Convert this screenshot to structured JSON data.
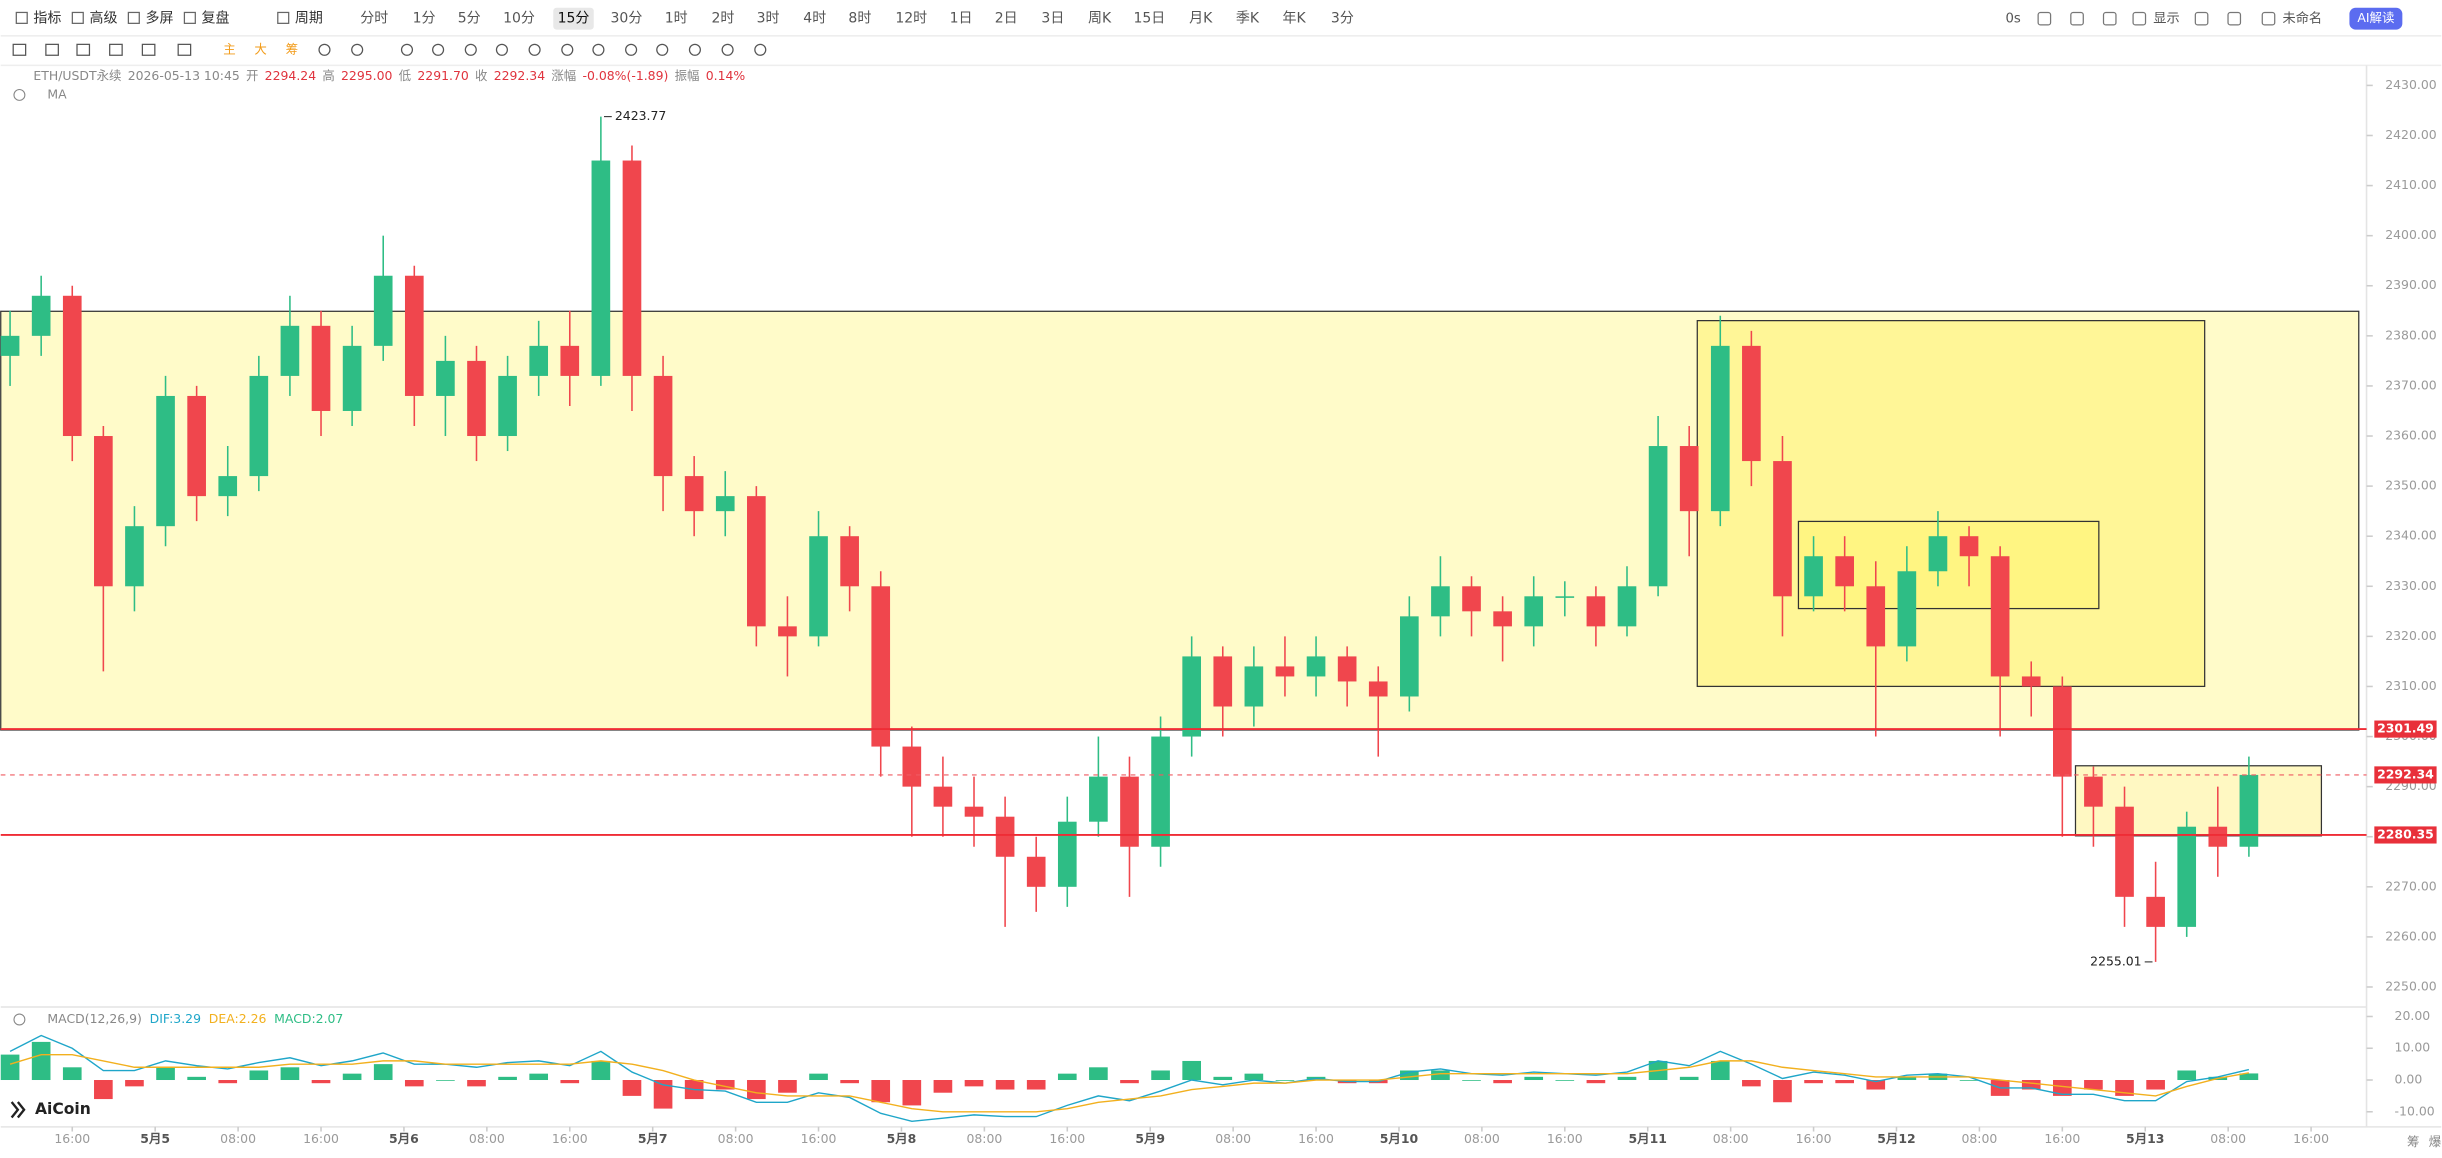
{
  "toolbar": {
    "left": [
      "指标",
      "高级",
      "多屏",
      "复盘",
      "周期"
    ],
    "periods": [
      "分时",
      "1分",
      "5分",
      "10分",
      "15分",
      "30分",
      "1时",
      "2时",
      "3时",
      "4时",
      "8时",
      "12时",
      "1日",
      "2日",
      "3日",
      "周K",
      "15日",
      "月K",
      "季K",
      "年K",
      "3分"
    ],
    "selected_period_index": 4,
    "right": [
      "0s",
      "显示",
      "未命名"
    ],
    "ai_button": "AI解读"
  },
  "drawing_tools": [
    "主",
    "大",
    "筹"
  ],
  "header": {
    "symbol": "ETH/USDT永续",
    "datetime": "2026-05-13 10:45",
    "fields": [
      {
        "label": "开",
        "value": "2294.24"
      },
      {
        "label": "高",
        "value": "2295.00"
      },
      {
        "label": "低",
        "value": "2291.70"
      },
      {
        "label": "收",
        "value": "2292.34"
      },
      {
        "label": "涨幅",
        "value": "-0.08%(-1.89)"
      },
      {
        "label": "振幅",
        "value": "0.14%"
      }
    ],
    "indicator": "MA"
  },
  "logo": "AiCoin",
  "corner": [
    "筹",
    "爆"
  ],
  "chart_data": {
    "type": "candlestick",
    "x": [
      -14,
      -11,
      -8,
      -5,
      -2,
      1,
      4,
      7,
      10,
      13,
      16,
      19,
      22,
      25,
      28,
      31,
      34,
      37,
      40,
      43,
      46,
      49,
      52,
      55,
      58,
      61,
      64,
      67,
      70,
      73,
      76,
      79,
      82,
      85,
      88,
      91,
      94,
      97,
      100,
      103,
      106,
      109,
      112,
      115,
      118,
      121,
      124,
      127,
      130,
      133,
      136,
      139,
      142,
      145,
      148,
      151,
      154,
      157,
      160,
      163,
      166,
      169,
      172,
      175,
      178,
      181,
      184,
      187,
      190,
      193,
      196,
      199,
      202
    ],
    "candles": [
      [
        2376,
        2385,
        2370,
        2380
      ],
      [
        2380,
        2392,
        2376,
        2388
      ],
      [
        2388,
        2390,
        2355,
        2360
      ],
      [
        2360,
        2362,
        2313,
        2330
      ],
      [
        2330,
        2346,
        2325,
        2342
      ],
      [
        2342,
        2372,
        2338,
        2368
      ],
      [
        2368,
        2370,
        2343,
        2348
      ],
      [
        2348,
        2358,
        2344,
        2352
      ],
      [
        2352,
        2376,
        2349,
        2372
      ],
      [
        2372,
        2388,
        2368,
        2382
      ],
      [
        2382,
        2385,
        2360,
        2365
      ],
      [
        2365,
        2382,
        2362,
        2378
      ],
      [
        2378,
        2400,
        2375,
        2392
      ],
      [
        2392,
        2394,
        2362,
        2368
      ],
      [
        2368,
        2380,
        2360,
        2375
      ],
      [
        2375,
        2378,
        2355,
        2360
      ],
      [
        2360,
        2376,
        2357,
        2372
      ],
      [
        2372,
        2383,
        2368,
        2378
      ],
      [
        2378,
        2385,
        2366,
        2372
      ],
      [
        2372,
        2423.77,
        2370,
        2415
      ],
      [
        2415,
        2418,
        2365,
        2372
      ],
      [
        2372,
        2376,
        2345,
        2352
      ],
      [
        2352,
        2356,
        2340,
        2345
      ],
      [
        2345,
        2353,
        2340,
        2348
      ],
      [
        2348,
        2350,
        2318,
        2322
      ],
      [
        2322,
        2328,
        2312,
        2320
      ],
      [
        2320,
        2345,
        2318,
        2340
      ],
      [
        2340,
        2342,
        2325,
        2330
      ],
      [
        2330,
        2333,
        2292,
        2298
      ],
      [
        2298,
        2302,
        2280,
        2290
      ],
      [
        2290,
        2296,
        2280,
        2286
      ],
      [
        2286,
        2292,
        2278,
        2284
      ],
      [
        2284,
        2288,
        2262,
        2276
      ],
      [
        2276,
        2280,
        2265,
        2270
      ],
      [
        2270,
        2288,
        2266,
        2283
      ],
      [
        2283,
        2300,
        2280,
        2292
      ],
      [
        2292,
        2296,
        2268,
        2278
      ],
      [
        2278,
        2304,
        2274,
        2300
      ],
      [
        2300,
        2320,
        2296,
        2316
      ],
      [
        2316,
        2318,
        2300,
        2306
      ],
      [
        2306,
        2318,
        2302,
        2314
      ],
      [
        2314,
        2320,
        2308,
        2312
      ],
      [
        2312,
        2320,
        2308,
        2316
      ],
      [
        2316,
        2318,
        2306,
        2311
      ],
      [
        2311,
        2314,
        2296,
        2308
      ],
      [
        2308,
        2328,
        2305,
        2324
      ],
      [
        2324,
        2336,
        2320,
        2330
      ],
      [
        2330,
        2332,
        2320,
        2325
      ],
      [
        2325,
        2328,
        2315,
        2322
      ],
      [
        2322,
        2332,
        2318,
        2328
      ],
      [
        2328,
        2331,
        2324,
        2328
      ],
      [
        2328,
        2330,
        2318,
        2322
      ],
      [
        2322,
        2334,
        2320,
        2330
      ],
      [
        2330,
        2364,
        2328,
        2358
      ],
      [
        2358,
        2362,
        2336,
        2345
      ],
      [
        2345,
        2384,
        2342,
        2378
      ],
      [
        2378,
        2381,
        2350,
        2355
      ],
      [
        2355,
        2360,
        2320,
        2328
      ],
      [
        2328,
        2340,
        2325,
        2336
      ],
      [
        2336,
        2340,
        2325,
        2330
      ],
      [
        2330,
        2335,
        2300,
        2318
      ],
      [
        2318,
        2338,
        2315,
        2333
      ],
      [
        2333,
        2345,
        2330,
        2340
      ],
      [
        2340,
        2342,
        2330,
        2336
      ],
      [
        2336,
        2338,
        2300,
        2312
      ],
      [
        2312,
        2315,
        2304,
        2310
      ],
      [
        2310,
        2312,
        2280,
        2292
      ],
      [
        2292,
        2294,
        2278,
        2286
      ],
      [
        2286,
        2290,
        2262,
        2268
      ],
      [
        2268,
        2275,
        2255.01,
        2262
      ],
      [
        2262,
        2285,
        2260,
        2282
      ],
      [
        2282,
        2290,
        2272,
        2278
      ],
      [
        2278,
        2296,
        2276,
        2292.34
      ]
    ],
    "up_color": "#2ebd85",
    "down_color": "#f0464d",
    "xlim": [
      -14.9,
      212.6
    ],
    "xticks": [
      {
        "value": -8,
        "label": "16:00"
      },
      {
        "value": 0,
        "label": "5月5"
      },
      {
        "value": 8,
        "label": "08:00"
      },
      {
        "value": 16,
        "label": "16:00"
      },
      {
        "value": 24,
        "label": "5月6"
      },
      {
        "value": 32,
        "label": "08:00"
      },
      {
        "value": 40,
        "label": "16:00"
      },
      {
        "value": 48,
        "label": "5月7"
      },
      {
        "value": 56,
        "label": "08:00"
      },
      {
        "value": 64,
        "label": "16:00"
      },
      {
        "value": 72,
        "label": "5月8"
      },
      {
        "value": 80,
        "label": "08:00"
      },
      {
        "value": 88,
        "label": "16:00"
      },
      {
        "value": 96,
        "label": "5月9"
      },
      {
        "value": 104,
        "label": "08:00"
      },
      {
        "value": 112,
        "label": "16:00"
      },
      {
        "value": 120,
        "label": "5月10"
      },
      {
        "value": 128,
        "label": "08:00"
      },
      {
        "value": 136,
        "label": "16:00"
      },
      {
        "value": 144,
        "label": "5月11"
      },
      {
        "value": 152,
        "label": "08:00"
      },
      {
        "value": 160,
        "label": "16:00"
      },
      {
        "value": 168,
        "label": "5月12"
      },
      {
        "value": 176,
        "label": "08:00"
      },
      {
        "value": 184,
        "label": "16:00"
      },
      {
        "value": 192,
        "label": "5月13"
      },
      {
        "value": 200,
        "label": "08:00"
      },
      {
        "value": 208,
        "label": "16:00"
      }
    ],
    "ylim": [
      2246,
      2434
    ],
    "yticks": [
      {
        "value": 2250,
        "label": "2250.00"
      },
      {
        "value": 2260,
        "label": "2260.00"
      },
      {
        "value": 2270,
        "label": "2270.00"
      },
      {
        "value": 2280,
        "label": "2280.00"
      },
      {
        "value": 2290,
        "label": "2290.00"
      },
      {
        "value": 2300,
        "label": "2300.00"
      },
      {
        "value": 2310,
        "label": "2310.00"
      },
      {
        "value": 2320,
        "label": "2320.00"
      },
      {
        "value": 2330,
        "label": "2330.00"
      },
      {
        "value": 2340,
        "label": "2340.00"
      },
      {
        "value": 2350,
        "label": "2350.00"
      },
      {
        "value": 2360,
        "label": "2360.00"
      },
      {
        "value": 2370,
        "label": "2370.00"
      },
      {
        "value": 2380,
        "label": "2380.00"
      },
      {
        "value": 2390,
        "label": "2390.00"
      },
      {
        "value": 2400,
        "label": "2400.00"
      },
      {
        "value": 2410,
        "label": "2410.00"
      },
      {
        "value": 2420,
        "label": "2420.00"
      },
      {
        "value": 2430,
        "label": "2430.00"
      }
    ],
    "price_lines": [
      2301.49,
      2280.35
    ],
    "last_price": 2292.34,
    "macd": {
      "title": "MACD(12,26,9)",
      "dif_label": "DIF:3.29",
      "dea_label": "DEA:2.26",
      "macd_label": "MACD:2.07",
      "hist": [
        8,
        12,
        4,
        -6,
        -2,
        4,
        1,
        -1,
        3,
        4,
        -1,
        2,
        5,
        -2,
        0,
        -2,
        1,
        2,
        -1,
        6,
        -5,
        -9,
        -6,
        -3,
        -6,
        -4,
        2,
        -1,
        -7,
        -8,
        -4,
        -2,
        -3,
        -3,
        2,
        4,
        -1,
        3,
        6,
        1,
        2,
        0,
        1,
        -1,
        -1,
        3,
        3,
        0,
        -1,
        1,
        0,
        -1,
        1,
        6,
        1,
        6,
        -2,
        -7,
        -1,
        -1,
        -3,
        1,
        2,
        0,
        -5,
        -3,
        -5,
        -3,
        -5,
        -3,
        3,
        1,
        2.07
      ],
      "dif": [
        9,
        14,
        10,
        3,
        3,
        6,
        4.5,
        3.5,
        5.5,
        7,
        4.5,
        6,
        8.5,
        5,
        5,
        4,
        5.5,
        6,
        4.5,
        9,
        2.5,
        -1.5,
        -3,
        -3.5,
        -7,
        -7,
        -4,
        -5.5,
        -10.5,
        -13,
        -12,
        -11,
        -11.5,
        -11.5,
        -8,
        -5,
        -6.5,
        -3.5,
        0,
        -1.5,
        0,
        -1,
        0.5,
        -0.5,
        -0.5,
        2.5,
        3.5,
        2,
        1.5,
        2.5,
        2,
        1.5,
        2.5,
        6,
        4.5,
        9,
        5,
        0.5,
        2.5,
        1.5,
        -0.5,
        1.5,
        2,
        1,
        -2.5,
        -2.5,
        -4.5,
        -4.5,
        -6.5,
        -6.5,
        -0.5,
        1,
        3.29
      ],
      "dea": [
        5,
        8,
        8,
        6,
        4,
        4,
        4,
        4,
        4,
        5,
        5,
        5,
        6,
        6,
        5,
        5,
        5,
        5,
        5,
        6,
        5,
        3,
        0,
        -2,
        -4,
        -5,
        -5,
        -5,
        -7,
        -9,
        -10,
        -10,
        -10,
        -10,
        -9,
        -7,
        -6,
        -5,
        -3,
        -2,
        -1,
        -1,
        0,
        0,
        0,
        1,
        2,
        2,
        2,
        2,
        2,
        2,
        2,
        3,
        4,
        6,
        6,
        4,
        3,
        2,
        1,
        1,
        1,
        1,
        0,
        -1,
        -2,
        -3,
        -4,
        -5,
        -2,
        0.5,
        2.26
      ],
      "dif_color": "#1fa6c9",
      "dea_color": "#f2b01e",
      "ylim": [
        -15,
        22
      ],
      "yticks": [
        {
          "value": 20,
          "label": "20.00"
        },
        {
          "value": 10,
          "label": "10.00"
        },
        {
          "value": 0,
          "label": "0.00"
        },
        {
          "value": -10,
          "label": "-10.00"
        }
      ]
    }
  }
}
